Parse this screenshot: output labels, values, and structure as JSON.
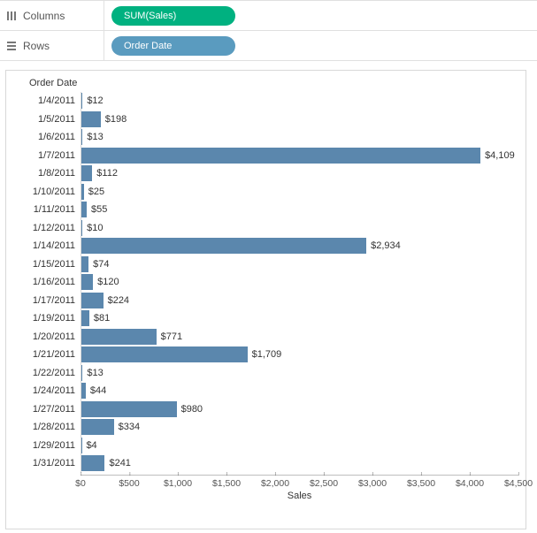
{
  "shelves": {
    "columns_label": "Columns",
    "rows_label": "Rows",
    "columns_pill": "SUM(Sales)",
    "rows_pill": "Order Date",
    "measure_color": "#00b180",
    "dim_color": "#5a9bbf"
  },
  "chart": {
    "type": "bar",
    "header": "Order Date",
    "x_label": "Sales",
    "bar_color": "#5b87ad",
    "background": "#ffffff",
    "x_max": 4500,
    "x_ticks": [
      {
        "val": 0,
        "label": "$0"
      },
      {
        "val": 500,
        "label": "$500"
      },
      {
        "val": 1000,
        "label": "$1,000"
      },
      {
        "val": 1500,
        "label": "$1,500"
      },
      {
        "val": 2000,
        "label": "$2,000"
      },
      {
        "val": 2500,
        "label": "$2,500"
      },
      {
        "val": 3000,
        "label": "$3,000"
      },
      {
        "val": 3500,
        "label": "$3,500"
      },
      {
        "val": 4000,
        "label": "$4,000"
      },
      {
        "val": 4500,
        "label": "$4,500"
      }
    ],
    "rows": [
      {
        "date": "1/4/2011",
        "value": 12,
        "label": "$12"
      },
      {
        "date": "1/5/2011",
        "value": 198,
        "label": "$198"
      },
      {
        "date": "1/6/2011",
        "value": 13,
        "label": "$13"
      },
      {
        "date": "1/7/2011",
        "value": 4109,
        "label": "$4,109"
      },
      {
        "date": "1/8/2011",
        "value": 112,
        "label": "$112"
      },
      {
        "date": "1/10/2011",
        "value": 25,
        "label": "$25"
      },
      {
        "date": "1/11/2011",
        "value": 55,
        "label": "$55"
      },
      {
        "date": "1/12/2011",
        "value": 10,
        "label": "$10"
      },
      {
        "date": "1/14/2011",
        "value": 2934,
        "label": "$2,934"
      },
      {
        "date": "1/15/2011",
        "value": 74,
        "label": "$74"
      },
      {
        "date": "1/16/2011",
        "value": 120,
        "label": "$120"
      },
      {
        "date": "1/17/2011",
        "value": 224,
        "label": "$224"
      },
      {
        "date": "1/19/2011",
        "value": 81,
        "label": "$81"
      },
      {
        "date": "1/20/2011",
        "value": 771,
        "label": "$771"
      },
      {
        "date": "1/21/2011",
        "value": 1709,
        "label": "$1,709"
      },
      {
        "date": "1/22/2011",
        "value": 13,
        "label": "$13"
      },
      {
        "date": "1/24/2011",
        "value": 44,
        "label": "$44"
      },
      {
        "date": "1/27/2011",
        "value": 980,
        "label": "$980"
      },
      {
        "date": "1/28/2011",
        "value": 334,
        "label": "$334"
      },
      {
        "date": "1/29/2011",
        "value": 4,
        "label": "$4"
      },
      {
        "date": "1/31/2011",
        "value": 241,
        "label": "$241"
      }
    ]
  }
}
